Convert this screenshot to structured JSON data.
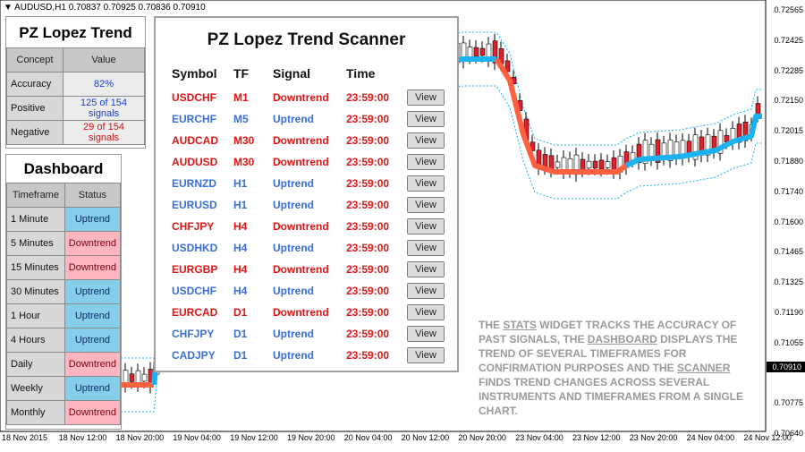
{
  "chart": {
    "symbol_label": "AUDUSD,H1  0.70837 0.70925 0.70836 0.70910",
    "price_labels": [
      "0.72565",
      "0.72425",
      "0.72285",
      "0.72150",
      "0.72015",
      "0.71880",
      "0.71740",
      "0.71600",
      "0.71465",
      "0.71325",
      "0.71190",
      "0.71055",
      "0.70910",
      "0.70775",
      "0.70640"
    ],
    "current_price": "0.70910",
    "time_labels": [
      "18 Nov 2015",
      "18 Nov 12:00",
      "18 Nov 20:00",
      "19 Nov 04:00",
      "19 Nov 12:00",
      "19 Nov 20:00",
      "20 Nov 04:00",
      "20 Nov 12:00",
      "20 Nov 20:00",
      "23 Nov 04:00",
      "23 Nov 12:00",
      "23 Nov 20:00",
      "24 Nov 04:00",
      "24 Nov 12:00"
    ],
    "colors": {
      "uptrend": "#1ab2f0",
      "downtrend": "#ff6040",
      "bull_candle": "#ffffff",
      "bear_candle": "#e0202a"
    }
  },
  "stats": {
    "title": "PZ Lopez Trend",
    "headers": [
      "Concept",
      "Value"
    ],
    "rows": [
      {
        "concept": "Accuracy",
        "value": "82%"
      },
      {
        "concept": "Positive",
        "value": "125 of 154 signals"
      },
      {
        "concept": "Negative",
        "value": "29 of 154 signals"
      }
    ]
  },
  "dashboard": {
    "title": "Dashboard",
    "headers": [
      "Timeframe",
      "Status"
    ],
    "rows": [
      {
        "tf": "1 Minute",
        "status": "Uptrend"
      },
      {
        "tf": "5 Minutes",
        "status": "Downtrend"
      },
      {
        "tf": "15 Minutes",
        "status": "Downtrend"
      },
      {
        "tf": "30 Minutes",
        "status": "Uptrend"
      },
      {
        "tf": "1 Hour",
        "status": "Uptrend"
      },
      {
        "tf": "4 Hours",
        "status": "Uptrend"
      },
      {
        "tf": "Daily",
        "status": "Downtrend"
      },
      {
        "tf": "Weekly",
        "status": "Uptrend"
      },
      {
        "tf": "Monthly",
        "status": "Downtrend"
      }
    ]
  },
  "scanner": {
    "title": "PZ Lopez Trend Scanner",
    "headers": {
      "symbol": "Symbol",
      "tf": "TF",
      "signal": "Signal",
      "time": "Time"
    },
    "view_label": "View",
    "rows": [
      {
        "symbol": "USDCHF",
        "tf": "M1",
        "signal": "Downtrend",
        "time": "23:59:00"
      },
      {
        "symbol": "EURCHF",
        "tf": "M5",
        "signal": "Uptrend",
        "time": "23:59:00"
      },
      {
        "symbol": "AUDCAD",
        "tf": "M30",
        "signal": "Downtrend",
        "time": "23:59:00"
      },
      {
        "symbol": "AUDUSD",
        "tf": "M30",
        "signal": "Downtrend",
        "time": "23:59:00"
      },
      {
        "symbol": "EURNZD",
        "tf": "H1",
        "signal": "Uptrend",
        "time": "23:59:00"
      },
      {
        "symbol": "EURUSD",
        "tf": "H1",
        "signal": "Uptrend",
        "time": "23:59:00"
      },
      {
        "symbol": "CHFJPY",
        "tf": "H4",
        "signal": "Downtrend",
        "time": "23:59:00"
      },
      {
        "symbol": "USDHKD",
        "tf": "H4",
        "signal": "Uptrend",
        "time": "23:59:00"
      },
      {
        "symbol": "EURGBP",
        "tf": "H4",
        "signal": "Downtrend",
        "time": "23:59:00"
      },
      {
        "symbol": "USDCHF",
        "tf": "H4",
        "signal": "Uptrend",
        "time": "23:59:00"
      },
      {
        "symbol": "EURCAD",
        "tf": "D1",
        "signal": "Downtrend",
        "time": "23:59:00"
      },
      {
        "symbol": "CHFJPY",
        "tf": "D1",
        "signal": "Uptrend",
        "time": "23:59:00"
      },
      {
        "symbol": "CADJPY",
        "tf": "D1",
        "signal": "Uptrend",
        "time": "23:59:00"
      }
    ]
  },
  "note": {
    "p1": "THE ",
    "stats_word": "STATS",
    "p2": " WIDGET TRACKS THE ACCURACY OF PAST SIGNALS, THE ",
    "dashboard_word": "DASHBOARD",
    "p3": " DISPLAYS THE TREND OF SEVERAL TIMEFRAMES FOR CONFIRMATION PURPOSES AND THE ",
    "scanner_word": "SCANNER",
    "p4": " FINDS TREND CHANGES ACROSS SEVERAL INSTRUMENTS AND TIMEFRAMES FROM A SINGLE CHART."
  }
}
